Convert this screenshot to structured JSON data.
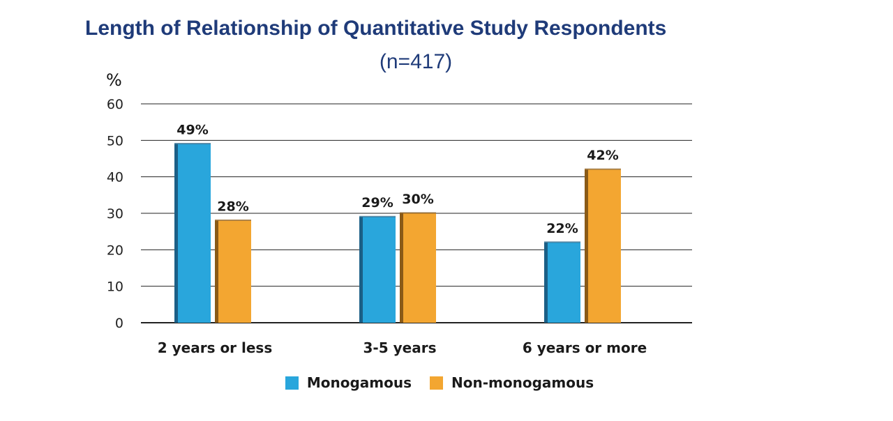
{
  "chart_data": {
    "type": "bar",
    "title": "Length of Relationship of Quantitative Study Respondents",
    "subtitle": "(n=417)",
    "ylabel": "%",
    "xlabel": "",
    "ylim": [
      0,
      60
    ],
    "yticks": [
      0,
      10,
      20,
      30,
      40,
      50,
      60
    ],
    "grid": true,
    "legend_position": "bottom",
    "categories": [
      "2 years or less",
      "3-5 years",
      "6 years or more"
    ],
    "series": [
      {
        "name": "Monogamous",
        "color": "#29a6dc",
        "side_color": "#1b5f86",
        "values": [
          49,
          29,
          22
        ],
        "labels": [
          "49%",
          "29%",
          "22%"
        ]
      },
      {
        "name": "Non-monogamous",
        "color": "#f3a631",
        "side_color": "#8a5a17",
        "values": [
          28,
          30,
          42
        ],
        "labels": [
          "28%",
          "30%",
          "42%"
        ]
      }
    ]
  }
}
